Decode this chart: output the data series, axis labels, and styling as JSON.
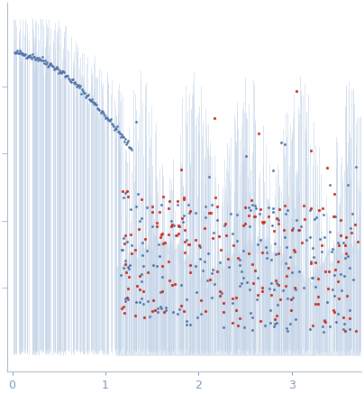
{
  "title": "",
  "xlabel": "",
  "ylabel": "",
  "xlim": [
    -0.05,
    3.75
  ],
  "ylim": [
    -0.05,
    1.05
  ],
  "x_ticks": [
    0,
    1,
    2,
    3
  ],
  "background_color": "#ffffff",
  "dot_color_alpha": "#4a6fa5",
  "dot_color_beta": "#cc3322",
  "error_bar_color": "#c5d5e8",
  "seed": 42
}
